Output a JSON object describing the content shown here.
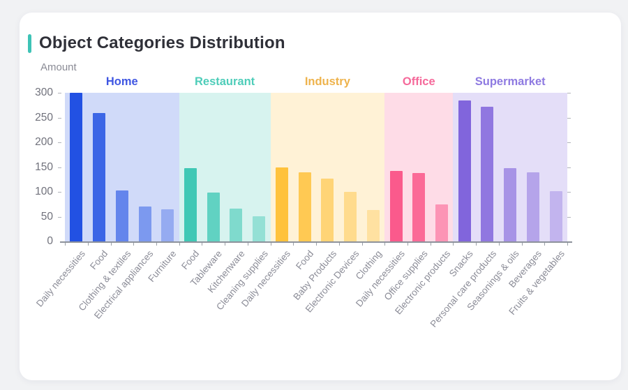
{
  "page": {
    "background": "#f1f2f4",
    "card_background": "#ffffff"
  },
  "header": {
    "title": "Object Categories Distribution",
    "accent_color": "#3ec3b6",
    "title_color": "#2f3038"
  },
  "chart_data": {
    "type": "bar",
    "title": "Object Categories Distribution",
    "ylabel": "Amount",
    "xlabel": "",
    "ylim": [
      0,
      300
    ],
    "yticks": [
      0,
      50,
      100,
      150,
      200,
      250,
      300
    ],
    "grid": false,
    "legend_position": "group-headers-top",
    "axis_color": "#8d929b",
    "tick_label_color": "#70717b",
    "category_label_color": "#8b8c97",
    "groups": [
      {
        "name": "Home",
        "color": "#2251e3",
        "label_color": "#3f56e2",
        "panel_alpha": 0.21,
        "categories": [
          "Daily necessities",
          "Food",
          "Clothing & textiles",
          "Electrical appliances",
          "Furniture"
        ],
        "values": [
          300,
          259,
          103,
          70,
          65
        ],
        "opacities": [
          1,
          0.85,
          0.62,
          0.48,
          0.34
        ]
      },
      {
        "name": "Restaurant",
        "color": "#40c8b5",
        "label_color": "#4ecdb9",
        "panel_alpha": 0.21,
        "categories": [
          "Food",
          "Tableware",
          "Kitchenware",
          "Cleaning supplies"
        ],
        "values": [
          148,
          98,
          66,
          51
        ],
        "opacities": [
          1,
          0.78,
          0.58,
          0.44
        ]
      },
      {
        "name": "Industry",
        "color": "#ffc23c",
        "label_color": "#eeb34c",
        "panel_alpha": 0.21,
        "categories": [
          "Daily necessities",
          "Food",
          "Baby Products",
          "Electronic Devices",
          "Clothing"
        ],
        "values": [
          150,
          139,
          127,
          100,
          64
        ],
        "opacities": [
          1,
          0.85,
          0.62,
          0.48,
          0.34
        ]
      },
      {
        "name": "Office",
        "color": "#fa5a8c",
        "label_color": "#f5699a",
        "panel_alpha": 0.21,
        "categories": [
          "Daily necessities",
          "Office supplies",
          "Electronic products"
        ],
        "values": [
          142,
          138,
          75
        ],
        "opacities": [
          1,
          0.88,
          0.55
        ]
      },
      {
        "name": "Supermarket",
        "color": "#8165dc",
        "label_color": "#8e7ae1",
        "panel_alpha": 0.21,
        "categories": [
          "Snacks",
          "Personal care products",
          "Seasonings & oils",
          "Beverages",
          "Fruits & vegetables"
        ],
        "values": [
          285,
          272,
          148,
          140,
          102
        ],
        "opacities": [
          1,
          0.85,
          0.62,
          0.48,
          0.34
        ]
      }
    ]
  }
}
